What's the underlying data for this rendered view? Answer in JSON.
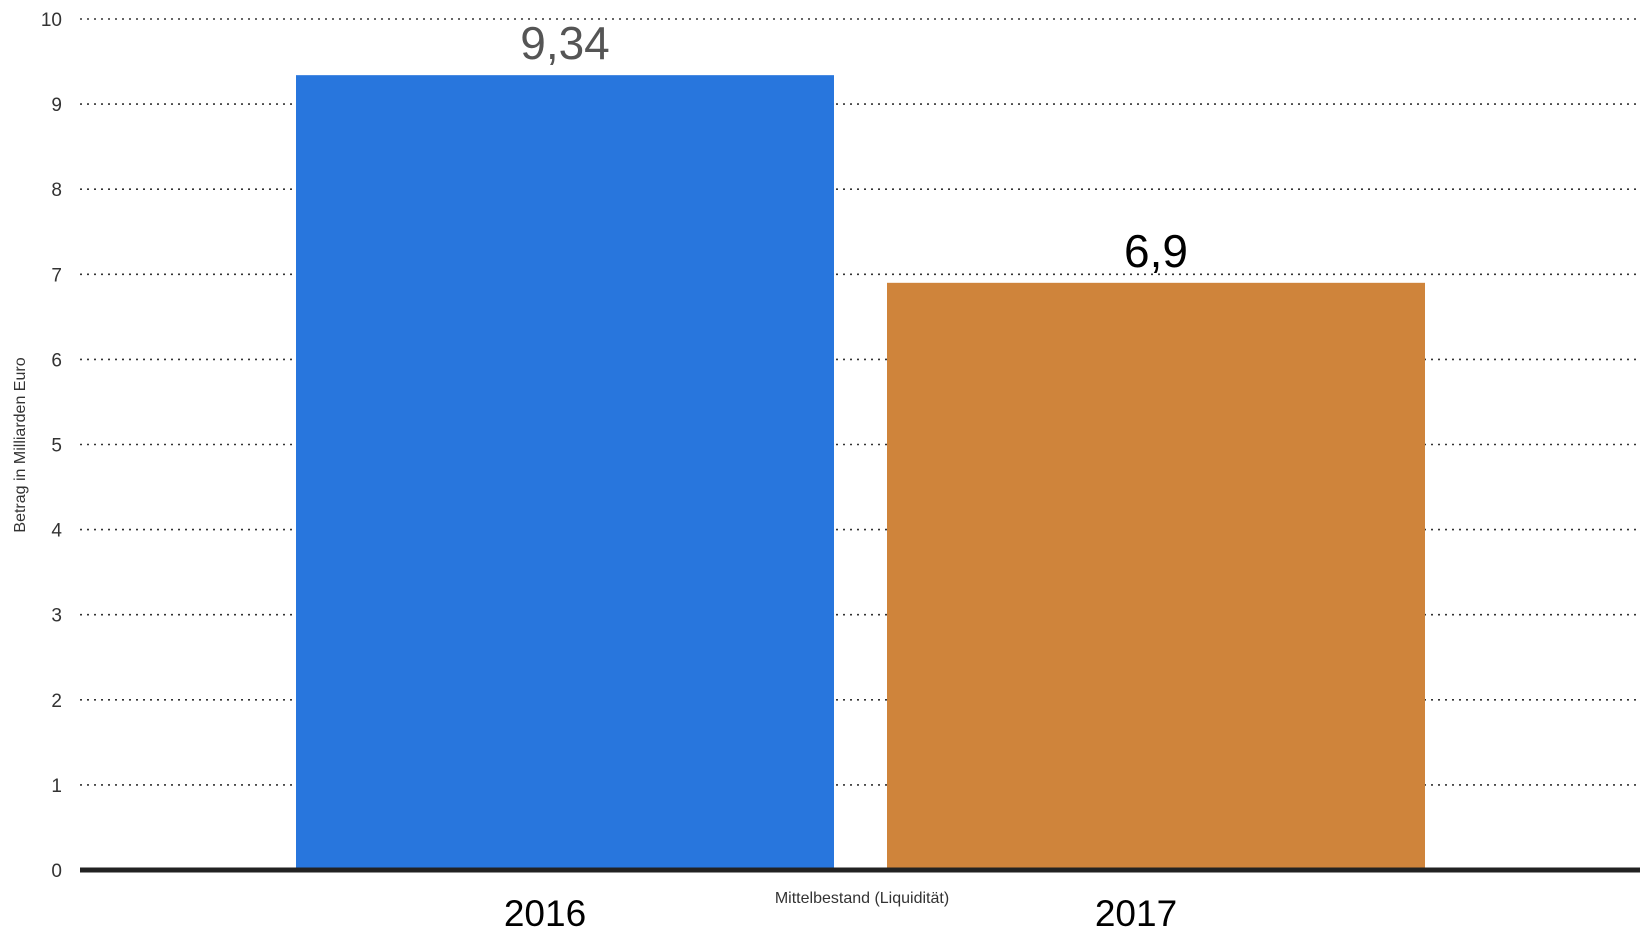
{
  "chart_data": {
    "type": "bar",
    "categories": [
      "2016",
      "2017"
    ],
    "values": [
      9.34,
      6.9
    ],
    "value_labels": [
      "9,34",
      "6,9"
    ],
    "bar_colors": [
      "#2876dd",
      "#cf843b"
    ],
    "value_label_colors": [
      "#555555",
      "#000000"
    ],
    "title": "",
    "xlabel": "Mittelbestand (Liquidität)",
    "ylabel": "Betrag in Milliarden Euro",
    "ylim": [
      0,
      10
    ],
    "yticks": [
      "0",
      "1",
      "2",
      "3",
      "4",
      "5",
      "6",
      "7",
      "8",
      "9",
      "10"
    ],
    "grid": "horizontal dotted",
    "legend": "none"
  }
}
